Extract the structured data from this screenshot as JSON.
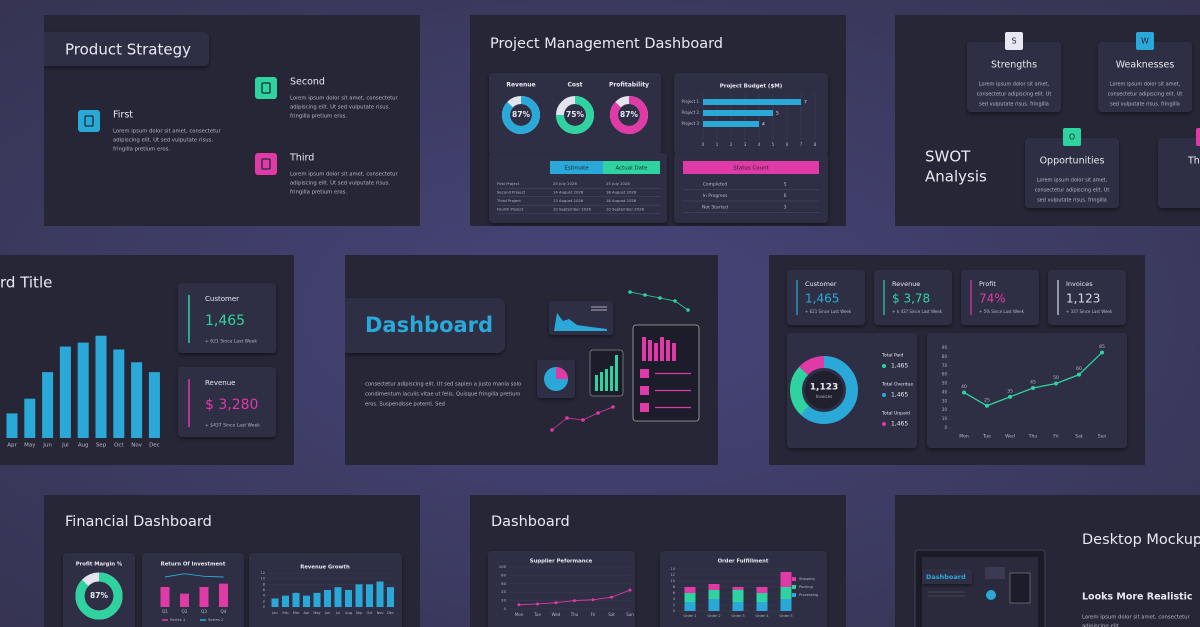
{
  "product_strategy": {
    "title": "Product Strategy",
    "items": [
      {
        "label": "First",
        "text": [
          "Lorem ipsum dolor sit amet, consectetur",
          "adipiscing elit. Ut sed vulputate risus.",
          "fringilla pretium eros."
        ]
      },
      {
        "label": "Second",
        "text": [
          "Lorem ipsum dolor sit amet, consectetur",
          "adipiscing elit. Ut sed vulputate risus.",
          "fringilla pretium eros."
        ]
      },
      {
        "label": "Third",
        "text": [
          "Lorem ipsum dolor sit amet, consectetur",
          "adipiscing elit. Ut sed vulputate risus.",
          "fringilla pretium eros."
        ]
      }
    ]
  },
  "project_dashboard": {
    "title": "Project Management Dashboard",
    "gauges": [
      {
        "label": "Revenue",
        "value": 87,
        "value_label": "87%"
      },
      {
        "label": "Cost",
        "value": 75,
        "value_label": "75%"
      },
      {
        "label": "Profitability",
        "value": 87,
        "value_label": "87%"
      }
    ],
    "budget": {
      "title": "Project Budget ($M)",
      "categories": [
        "Project 1",
        "Project 2",
        "Project 3"
      ],
      "values": [
        7,
        5,
        4
      ],
      "xlim": [
        0,
        8
      ],
      "xticks": [
        0,
        1,
        2,
        3,
        4,
        5,
        6,
        7,
        8
      ]
    },
    "schedule": {
      "columns": [
        "Estimate",
        "Actual Date"
      ],
      "rows": [
        [
          "First Project",
          "25 July 2026",
          "25 July 2026"
        ],
        [
          "Second Project",
          "14 August 2026",
          "18 August 2026"
        ],
        [
          "Third Project",
          "13 August 2026",
          "18 August 2026"
        ],
        [
          "Fourth Project",
          "10 September 2026",
          "10 September 2026"
        ]
      ]
    },
    "status": {
      "title": "Status Count",
      "rows": [
        [
          "Completed",
          "5"
        ],
        [
          "In Progress",
          "6"
        ],
        [
          "Not Started",
          "3"
        ]
      ]
    }
  },
  "swot": {
    "title": [
      "SWOT",
      "Analysis"
    ],
    "cards": [
      {
        "letter": "S",
        "label": "Strengths",
        "text": [
          "Lorem ipsum dolor sit amet,",
          "consectetur adipiscing elit. Ut",
          "sed vulputate risus. fringilla"
        ]
      },
      {
        "letter": "W",
        "label": "Weaknesses",
        "text": [
          "Lorem ipsum dolor sit amet,",
          "consectetur adipiscing elit. Ut",
          "sed vulputate risus. fringilla"
        ]
      },
      {
        "letter": "O",
        "label": "Opportunities",
        "text": [
          "Lorem ipsum dolor sit amet,",
          "consectetur adipiscing elit. Ut",
          "sed vulputate risus. fringilla"
        ]
      },
      {
        "label": "Th"
      }
    ]
  },
  "monthly": {
    "title": "rd Title",
    "categories": [
      "Apr",
      "May",
      "Jun",
      "Jul",
      "Aug",
      "Sep",
      "Oct",
      "Nov",
      "Dec"
    ],
    "values": [
      25,
      40,
      67,
      93,
      97,
      104,
      90,
      77,
      67
    ],
    "ylim": [
      0,
      120
    ],
    "cards": [
      {
        "label": "Customer",
        "value": "1,465",
        "note": "+ 621 Since Last Week"
      },
      {
        "label": "Revenue",
        "value": "$ 3,280",
        "note": "+ $437 Since Last Week"
      }
    ]
  },
  "intro": {
    "title": "Dashboard",
    "text": [
      "consectetur adipiscing elit. Ut sed sapien a justo mania solo",
      "condimentum iaculis vitae ut felis. Quisque fringilla pretium",
      "eros. Suspendisse potenti. Sed"
    ]
  },
  "kpi_dashboard": {
    "cards": [
      {
        "label": "Customer",
        "value": "1,465",
        "note": "+ 621 Since Last Week"
      },
      {
        "label": "Revenue",
        "value": "$ 3,78",
        "note": "+ $ 437 Since Last Week"
      },
      {
        "label": "Profit",
        "value": "74%",
        "note": "+ 5% Since Last Week"
      },
      {
        "label": "Invoices",
        "value": "1,123",
        "note": "+ 337 Since Last Week"
      }
    ],
    "donut": {
      "value": "1,123",
      "label": "Invoices"
    },
    "legend": [
      {
        "label": "Total Paid",
        "value": "1,465"
      },
      {
        "label": "Total Overdue",
        "value": "1,465"
      },
      {
        "label": "Total Unpaid",
        "value": "1,465"
      }
    ],
    "line": {
      "categories": [
        "Mon",
        "Tue",
        "Wed",
        "Thu",
        "Fri",
        "Sat",
        "Sun"
      ],
      "values": [
        40,
        25,
        35,
        45,
        50,
        60,
        85
      ],
      "ylim": [
        0,
        90
      ],
      "yticks": [
        0,
        10,
        20,
        30,
        40,
        50,
        60,
        70,
        80,
        90
      ]
    }
  },
  "financial": {
    "title": "Financial Dashboard",
    "margin": {
      "title": "Profit Margin %",
      "value": 87,
      "value_label": "87%"
    },
    "roi": {
      "title": "Return Of Investment",
      "categories": [
        "Q1",
        "Q2",
        "Q3",
        "Q4"
      ],
      "ylim": [
        0,
        6
      ],
      "series": [
        {
          "name": "Series 1",
          "color": "#e03aa6",
          "values": [
            3,
            2,
            3,
            3.5
          ]
        },
        {
          "name": "Series 2",
          "color": "#2aa9d9",
          "values": [
            4.5,
            5,
            4.6,
            4.5
          ]
        }
      ]
    },
    "growth": {
      "title": "Revenue Growth",
      "categories": [
        "Jan",
        "Feb",
        "Mar",
        "Apr",
        "May",
        "Jun",
        "Jul",
        "Aug",
        "Sep",
        "Oct",
        "Nov",
        "Dec"
      ],
      "values": [
        3,
        4,
        5,
        4,
        5,
        6,
        7,
        6,
        8,
        8,
        9,
        7
      ],
      "ylim": [
        0,
        12
      ],
      "yticks": [
        0,
        2,
        4,
        6,
        8,
        10,
        12
      ]
    }
  },
  "operations": {
    "title": "Dashboard",
    "supplier": {
      "title": "Supplier Peformance",
      "categories": [
        "Mon",
        "Tue",
        "Wed",
        "Thu",
        "Fri",
        "Sat",
        "Sun"
      ],
      "values": [
        10,
        12,
        15,
        20,
        22,
        28,
        45
      ],
      "ylim": [
        0,
        100
      ],
      "yticks": [
        0,
        20,
        40,
        60,
        80,
        100
      ]
    },
    "orders": {
      "title": "Order Fulfillment",
      "categories": [
        "Order 1",
        "Order 2",
        "Order 3",
        "Order 4",
        "Order 5"
      ],
      "ylim": [
        0,
        14
      ],
      "yticks": [
        0,
        2,
        4,
        6,
        8,
        10,
        12,
        14
      ],
      "series": [
        {
          "name": "Shipping",
          "color": "#e03aa6",
          "values": [
            2,
            2,
            1,
            2,
            5
          ]
        },
        {
          "name": "Packing",
          "color": "#2ed3a0",
          "values": [
            3,
            3,
            4,
            3,
            4
          ]
        },
        {
          "name": "Processing",
          "color": "#2aa9d9",
          "values": [
            3,
            4,
            3,
            3,
            4
          ]
        }
      ]
    }
  },
  "mockup": {
    "title": "Desktop Mockup",
    "subtitle": "Looks More Realistic",
    "text": [
      "Lorem ipsum dolor sit amet, consectetur",
      "adipiscing elit."
    ],
    "screen_title": "Dashboard"
  }
}
